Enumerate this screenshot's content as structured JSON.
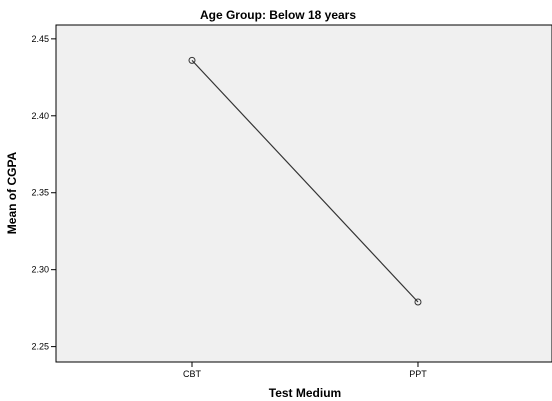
{
  "chart_data": {
    "type": "line",
    "title": "Age Group: Below 18 years",
    "xlabel": "Test Medium",
    "ylabel": "Mean of CGPA",
    "categories": [
      "CBT",
      "PPT"
    ],
    "series": [
      {
        "values": [
          2.436,
          2.279
        ]
      }
    ],
    "ylim": [
      2.24,
      2.459
    ],
    "yticks": [
      2.25,
      2.3,
      2.35,
      2.4,
      2.45
    ],
    "ytick_labels": [
      "2.25",
      "2.30",
      "2.35",
      "2.40",
      "2.45"
    ],
    "grid": false,
    "legend": "none",
    "colors": {
      "plot_background": "#f0f0f0",
      "line": "#333333",
      "axis": "#000000"
    }
  }
}
